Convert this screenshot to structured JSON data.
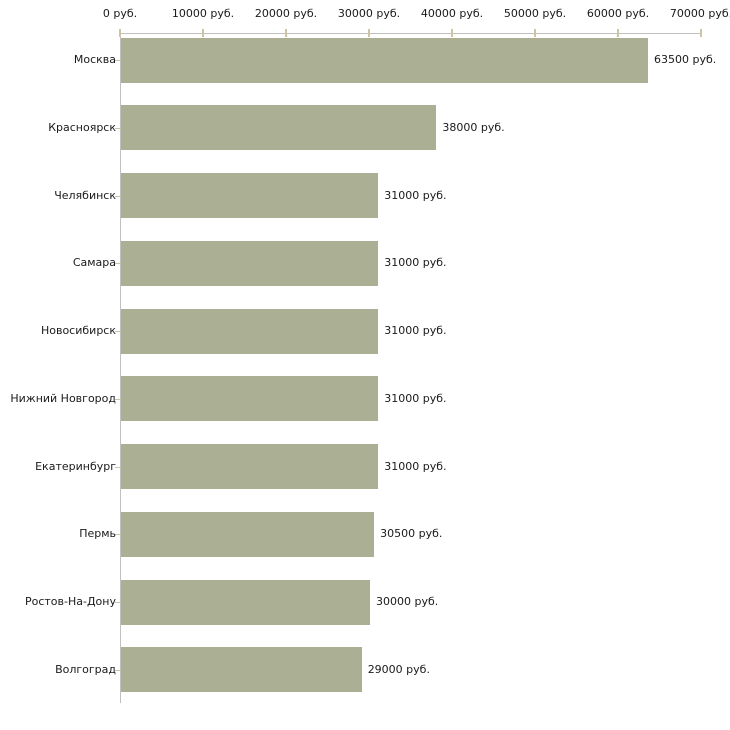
{
  "chart_data": {
    "type": "bar",
    "orientation": "horizontal",
    "title": "",
    "xlabel": "",
    "ylabel": "",
    "xlim": [
      0,
      70000
    ],
    "grid": false,
    "legend": null,
    "categories": [
      "Москва",
      "Красноярск",
      "Челябинск",
      "Самара",
      "Новосибирск",
      "Нижний Новгород",
      "Екатеринбург",
      "Пермь",
      "Ростов-На-Дону",
      "Волгоград"
    ],
    "values": [
      63500,
      38000,
      31000,
      31000,
      31000,
      31000,
      31000,
      30500,
      30000,
      29000
    ],
    "value_labels": [
      "63500 руб.",
      "38000 руб.",
      "31000 руб.",
      "31000 руб.",
      "31000 руб.",
      "31000 руб.",
      "31000 руб.",
      "30500 руб.",
      "30000 руб.",
      "29000 руб."
    ],
    "x_ticks": [
      0,
      10000,
      20000,
      30000,
      40000,
      50000,
      60000,
      70000
    ],
    "x_tick_labels": [
      "0 руб.",
      "10000 руб.",
      "20000 руб.",
      "30000 руб.",
      "40000 руб.",
      "50000 руб.",
      "60000 руб.",
      "70000 руб."
    ],
    "colors": {
      "bar": "#abb095",
      "axis": "#c0c0c0",
      "tick": "#ccc5a0",
      "text": "#1a1a1a",
      "background": "#ffffff"
    }
  }
}
